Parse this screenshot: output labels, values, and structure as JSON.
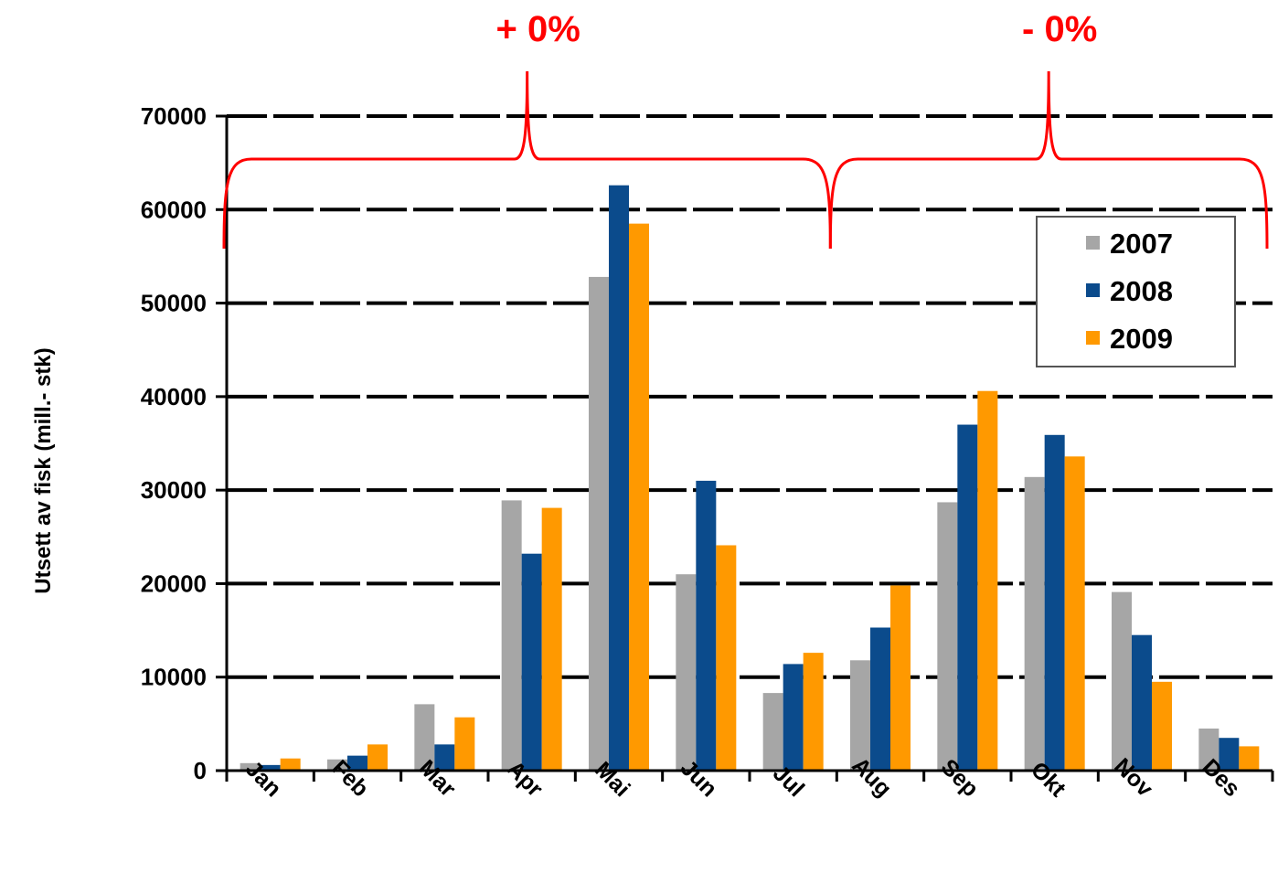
{
  "chart_data": {
    "type": "bar",
    "categories": [
      "Jan",
      "Feb",
      "Mar",
      "Apr",
      "Mai",
      "Jun",
      "Jul",
      "Aug",
      "Sep",
      "Okt",
      "Nov",
      "Des"
    ],
    "series": [
      {
        "name": "2007",
        "color": "#a6a6a6",
        "values": [
          800,
          1200,
          7100,
          28900,
          52800,
          21000,
          8300,
          11800,
          28700,
          31400,
          19100,
          4500
        ]
      },
      {
        "name": "2008",
        "color": "#0b4b8c",
        "values": [
          600,
          1600,
          2800,
          23200,
          62600,
          31000,
          11400,
          15300,
          37000,
          35900,
          14500,
          3500
        ]
      },
      {
        "name": "2009",
        "color": "#ff9900",
        "values": [
          1300,
          2800,
          5700,
          28100,
          58500,
          24100,
          12600,
          19800,
          40600,
          33600,
          9500,
          2600
        ]
      }
    ],
    "ylabel": "Utsett av fisk (mill.- stk)",
    "xlabel": "",
    "ylim": [
      0,
      70000
    ],
    "yticks": [
      0,
      10000,
      20000,
      30000,
      40000,
      50000,
      60000,
      70000
    ],
    "grid": true,
    "legend_position": "top-right",
    "annotations": [
      {
        "text": "+ 0%",
        "span": [
          "Jan",
          "Jul"
        ]
      },
      {
        "text": "- 0%",
        "span": [
          "Jul",
          "Des"
        ]
      }
    ],
    "annotation_color": "#ff0000"
  }
}
